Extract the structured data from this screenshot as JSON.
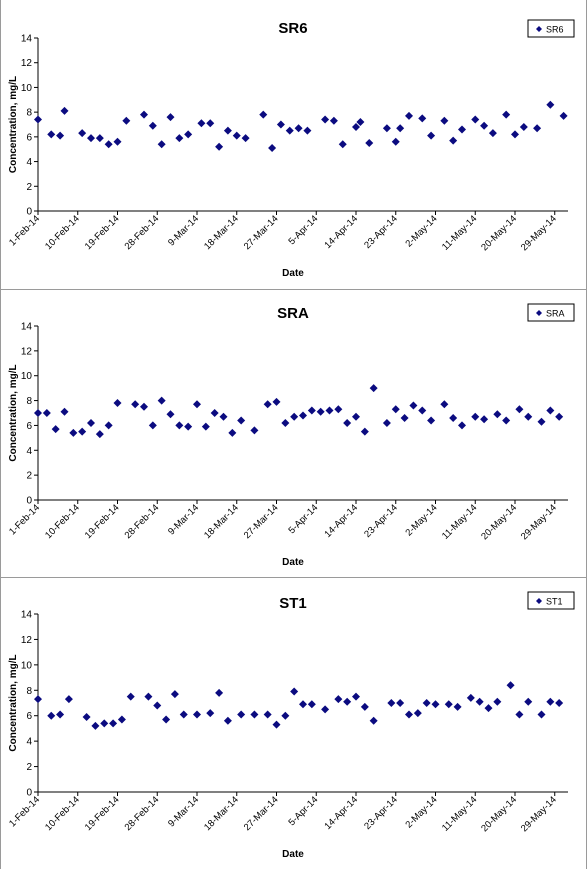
{
  "shared": {
    "ylabel": "Concentration, mg/L",
    "xlabel": "Date",
    "marker_color": "#0b0b80",
    "yticks": [
      0,
      2,
      4,
      6,
      8,
      10,
      12,
      14
    ],
    "xtick_labels": [
      "1-Feb-14",
      "10-Feb-14",
      "19-Feb-14",
      "28-Feb-14",
      "9-Mar-14",
      "18-Mar-14",
      "27-Mar-14",
      "5-Apr-14",
      "14-Apr-14",
      "23-Apr-14",
      "2-May-14",
      "11-May-14",
      "20-May-14",
      "29-May-14"
    ]
  },
  "chart_data": [
    {
      "type": "scatter",
      "title": "SR6",
      "xlabel": "Date",
      "ylabel": "Concentration, mg/L",
      "ylim": [
        0,
        14
      ],
      "xlim": [
        "2014-02-01",
        "2014-06-01"
      ],
      "legend": {
        "position": "top-right",
        "entries": [
          "SR6"
        ]
      },
      "series": [
        {
          "name": "SR6",
          "x": [
            "2014-02-01",
            "2014-02-04",
            "2014-02-06",
            "2014-02-07",
            "2014-02-11",
            "2014-02-13",
            "2014-02-15",
            "2014-02-17",
            "2014-02-19",
            "2014-02-21",
            "2014-02-25",
            "2014-02-27",
            "2014-03-01",
            "2014-03-03",
            "2014-03-05",
            "2014-03-07",
            "2014-03-10",
            "2014-03-12",
            "2014-03-14",
            "2014-03-16",
            "2014-03-18",
            "2014-03-20",
            "2014-03-24",
            "2014-03-26",
            "2014-03-28",
            "2014-03-30",
            "2014-04-01",
            "2014-04-03",
            "2014-04-07",
            "2014-04-09",
            "2014-04-11",
            "2014-04-14",
            "2014-04-15",
            "2014-04-17",
            "2014-04-21",
            "2014-04-23",
            "2014-04-24",
            "2014-04-26",
            "2014-04-29",
            "2014-05-01",
            "2014-05-04",
            "2014-05-06",
            "2014-05-08",
            "2014-05-11",
            "2014-05-13",
            "2014-05-15",
            "2014-05-18",
            "2014-05-20",
            "2014-05-22",
            "2014-05-25",
            "2014-05-28",
            "2014-05-31"
          ],
          "y": [
            7.4,
            6.2,
            6.1,
            8.1,
            6.3,
            5.9,
            5.9,
            5.4,
            5.6,
            7.3,
            7.8,
            6.9,
            5.4,
            7.6,
            5.9,
            6.2,
            7.1,
            7.1,
            5.2,
            6.5,
            6.1,
            5.9,
            7.8,
            5.1,
            7.0,
            6.5,
            6.7,
            6.5,
            7.4,
            7.3,
            5.4,
            6.8,
            7.2,
            5.5,
            6.7,
            5.6,
            6.7,
            7.7,
            7.5,
            6.1,
            7.3,
            5.7,
            6.6,
            7.4,
            6.9,
            6.3,
            7.8,
            6.2,
            6.8,
            6.7,
            8.6,
            7.7
          ]
        }
      ]
    },
    {
      "type": "scatter",
      "title": "SRA",
      "xlabel": "Date",
      "ylabel": "Concentration, mg/L",
      "ylim": [
        0,
        14
      ],
      "xlim": [
        "2014-02-01",
        "2014-06-01"
      ],
      "legend": {
        "position": "top-right",
        "entries": [
          "SRA"
        ]
      },
      "series": [
        {
          "name": "SRA",
          "x": [
            "2014-02-01",
            "2014-02-03",
            "2014-02-05",
            "2014-02-07",
            "2014-02-09",
            "2014-02-11",
            "2014-02-13",
            "2014-02-15",
            "2014-02-17",
            "2014-02-19",
            "2014-02-23",
            "2014-02-25",
            "2014-02-27",
            "2014-03-01",
            "2014-03-03",
            "2014-03-05",
            "2014-03-07",
            "2014-03-09",
            "2014-03-11",
            "2014-03-13",
            "2014-03-15",
            "2014-03-17",
            "2014-03-19",
            "2014-03-22",
            "2014-03-25",
            "2014-03-27",
            "2014-03-29",
            "2014-03-31",
            "2014-04-02",
            "2014-04-04",
            "2014-04-06",
            "2014-04-08",
            "2014-04-10",
            "2014-04-12",
            "2014-04-14",
            "2014-04-16",
            "2014-04-18",
            "2014-04-21",
            "2014-04-23",
            "2014-04-25",
            "2014-04-27",
            "2014-04-29",
            "2014-05-01",
            "2014-05-04",
            "2014-05-06",
            "2014-05-08",
            "2014-05-11",
            "2014-05-13",
            "2014-05-16",
            "2014-05-18",
            "2014-05-21",
            "2014-05-23",
            "2014-05-26",
            "2014-05-28",
            "2014-05-30"
          ],
          "y": [
            7.0,
            7.0,
            5.7,
            7.1,
            5.4,
            5.5,
            6.2,
            5.3,
            6.0,
            7.8,
            7.7,
            7.5,
            6.0,
            8.0,
            6.9,
            6.0,
            5.9,
            7.7,
            5.9,
            7.0,
            6.7,
            5.4,
            6.4,
            5.6,
            7.7,
            7.9,
            6.2,
            6.7,
            6.8,
            7.2,
            7.1,
            7.2,
            7.3,
            6.2,
            6.7,
            5.5,
            9.0,
            6.2,
            7.3,
            6.6,
            7.6,
            7.2,
            6.4,
            7.7,
            6.6,
            6.0,
            6.7,
            6.5,
            6.9,
            6.4,
            7.3,
            6.7,
            6.3,
            7.2,
            6.7
          ]
        }
      ]
    },
    {
      "type": "scatter",
      "title": "ST1",
      "xlabel": "Date",
      "ylabel": "Concentration, mg/L",
      "ylim": [
        0,
        14
      ],
      "xlim": [
        "2014-02-01",
        "2014-06-01"
      ],
      "legend": {
        "position": "top-right",
        "entries": [
          "ST1"
        ]
      },
      "series": [
        {
          "name": "ST1",
          "x": [
            "2014-02-01",
            "2014-02-04",
            "2014-02-06",
            "2014-02-08",
            "2014-02-12",
            "2014-02-14",
            "2014-02-16",
            "2014-02-18",
            "2014-02-20",
            "2014-02-22",
            "2014-02-26",
            "2014-02-28",
            "2014-03-02",
            "2014-03-04",
            "2014-03-06",
            "2014-03-09",
            "2014-03-12",
            "2014-03-14",
            "2014-03-16",
            "2014-03-19",
            "2014-03-22",
            "2014-03-25",
            "2014-03-27",
            "2014-03-29",
            "2014-03-31",
            "2014-04-02",
            "2014-04-04",
            "2014-04-07",
            "2014-04-10",
            "2014-04-12",
            "2014-04-14",
            "2014-04-16",
            "2014-04-18",
            "2014-04-22",
            "2014-04-24",
            "2014-04-26",
            "2014-04-28",
            "2014-04-30",
            "2014-05-02",
            "2014-05-05",
            "2014-05-07",
            "2014-05-10",
            "2014-05-12",
            "2014-05-14",
            "2014-05-16",
            "2014-05-19",
            "2014-05-21",
            "2014-05-23",
            "2014-05-26",
            "2014-05-28",
            "2014-05-30"
          ],
          "y": [
            7.3,
            6.0,
            6.1,
            7.3,
            5.9,
            5.2,
            5.4,
            5.4,
            5.7,
            7.5,
            7.5,
            6.8,
            5.7,
            7.7,
            6.1,
            6.1,
            6.2,
            7.8,
            5.6,
            6.1,
            6.1,
            6.1,
            5.3,
            6.0,
            7.9,
            6.9,
            6.9,
            6.5,
            7.3,
            7.1,
            7.5,
            6.7,
            5.6,
            7.0,
            7.0,
            6.1,
            6.2,
            7.0,
            6.9,
            6.9,
            6.7,
            7.4,
            7.1,
            6.6,
            7.1,
            8.4,
            6.1,
            7.1,
            6.1,
            7.1,
            7.0
          ]
        }
      ]
    }
  ]
}
